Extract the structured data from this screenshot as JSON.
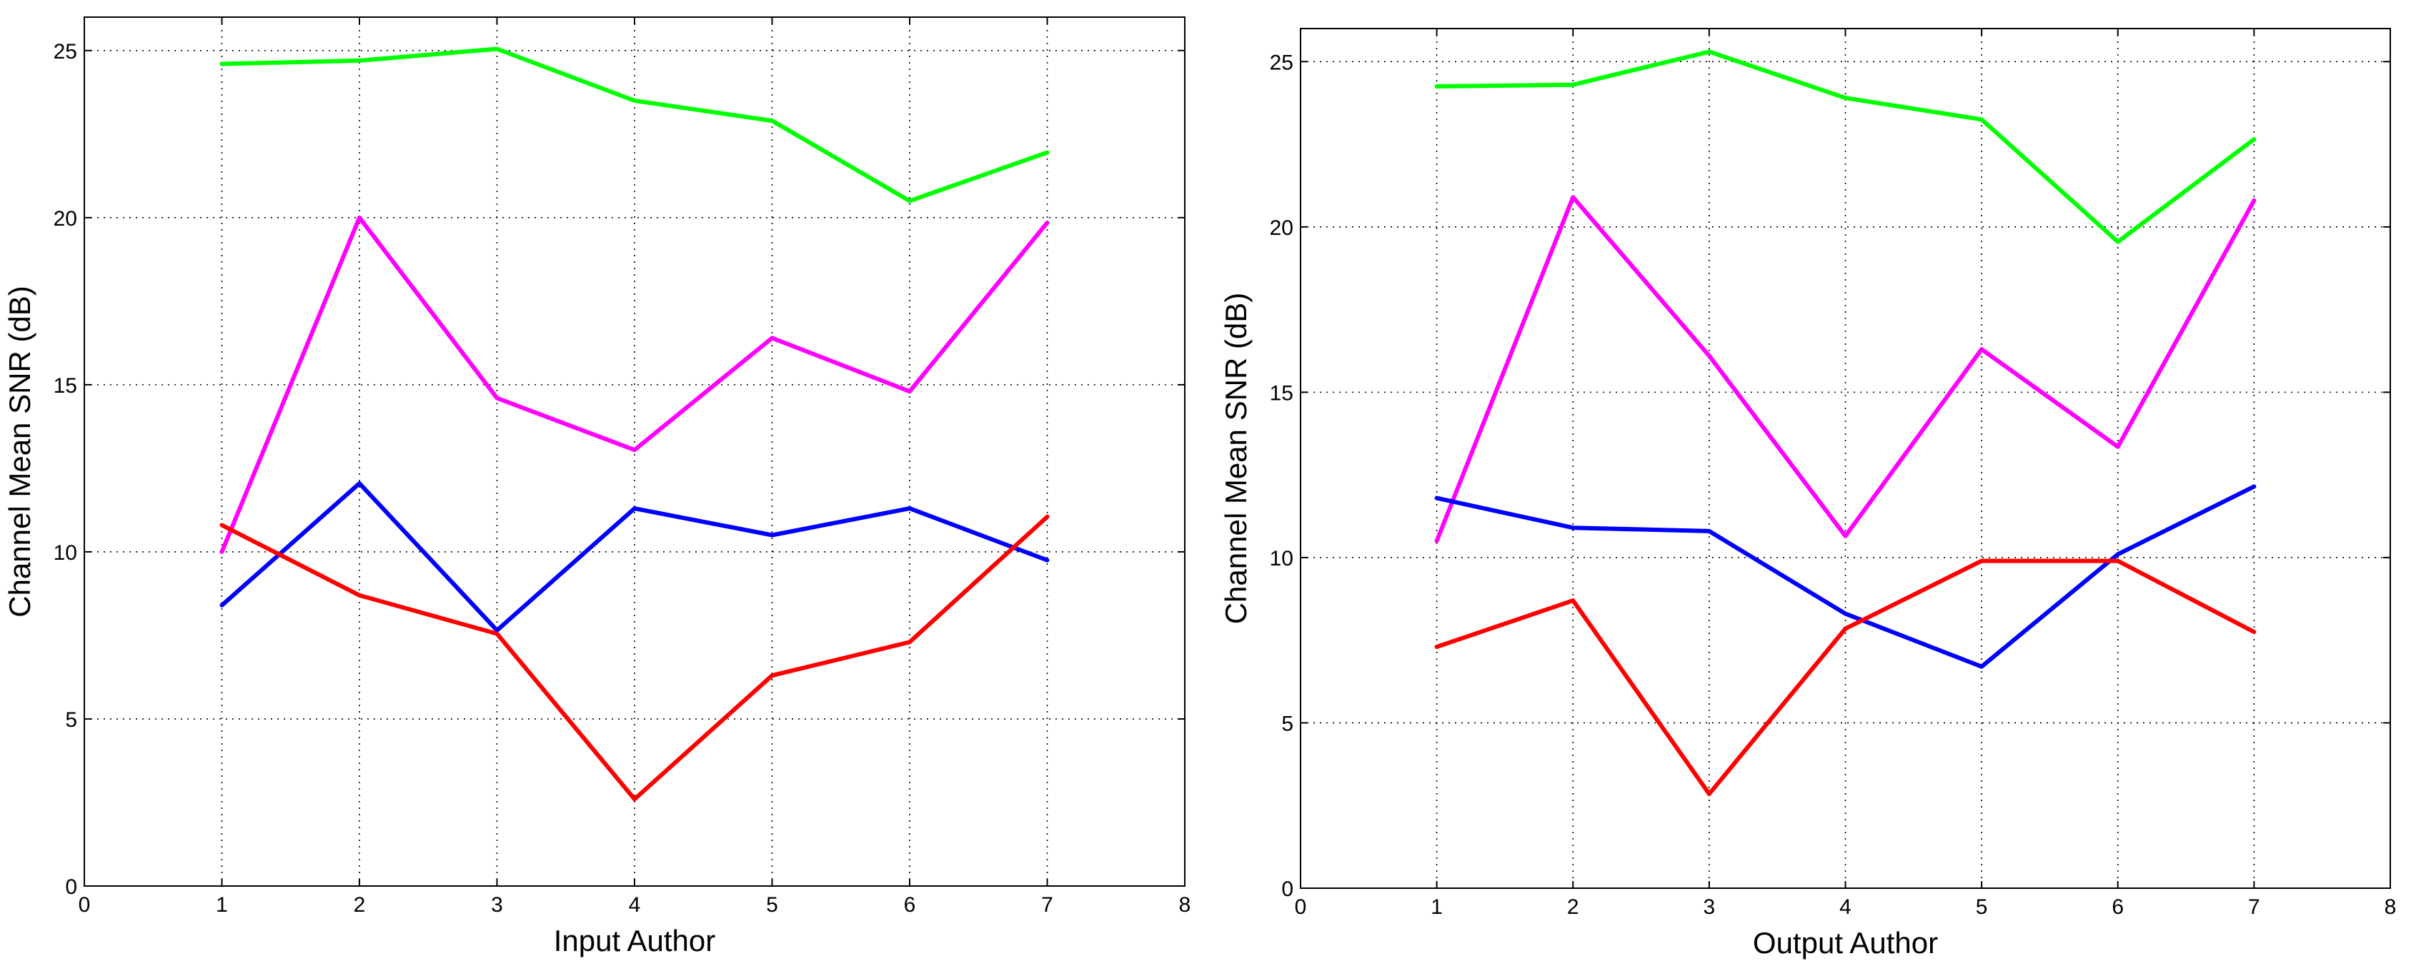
{
  "chart_data": [
    {
      "type": "line",
      "xlabel": "Input Author",
      "ylabel": "Channel Mean SNR (dB)",
      "xlim": [
        0,
        8
      ],
      "ylim": [
        0,
        26
      ],
      "xticks": [
        0,
        1,
        2,
        3,
        4,
        5,
        6,
        7,
        8
      ],
      "yticks": [
        0,
        5,
        10,
        15,
        20,
        25
      ],
      "xtick_labels": [
        "0",
        "1",
        "2",
        "3",
        "4",
        "5",
        "6",
        "7",
        "8"
      ],
      "ytick_labels": [
        "0",
        "5",
        "10",
        "15",
        "20",
        "25"
      ],
      "grid": true,
      "x": [
        1,
        2,
        3,
        4,
        5,
        6,
        7
      ],
      "series": [
        {
          "color": "#00ff00",
          "values": [
            24.6,
            24.7,
            25.05,
            23.5,
            22.9,
            20.5,
            21.95
          ]
        },
        {
          "color": "#ff00ff",
          "values": [
            10.0,
            20.0,
            14.6,
            13.05,
            16.4,
            14.8,
            19.85
          ]
        },
        {
          "color": "#0000ff",
          "values": [
            8.4,
            12.05,
            7.65,
            11.3,
            10.5,
            11.3,
            9.75
          ]
        },
        {
          "color": "#ff0000",
          "values": [
            10.8,
            8.7,
            7.55,
            2.6,
            6.3,
            7.3,
            11.05
          ]
        }
      ]
    },
    {
      "type": "line",
      "xlabel": "Output Author",
      "ylabel": "Channel Mean SNR (dB)",
      "xlim": [
        0,
        8
      ],
      "ylim": [
        0,
        26
      ],
      "xticks": [
        0,
        1,
        2,
        3,
        4,
        5,
        6,
        7,
        8
      ],
      "yticks": [
        0,
        5,
        10,
        15,
        20,
        25
      ],
      "xtick_labels": [
        "0",
        "1",
        "2",
        "3",
        "4",
        "5",
        "6",
        "7",
        "8"
      ],
      "ytick_labels": [
        "0",
        "5",
        "10",
        "15",
        "20",
        "25"
      ],
      "grid": true,
      "x": [
        1,
        2,
        3,
        4,
        5,
        6,
        7
      ],
      "series": [
        {
          "color": "#00ff00",
          "values": [
            24.25,
            24.3,
            25.3,
            23.9,
            23.25,
            19.55,
            22.65
          ]
        },
        {
          "color": "#ff00ff",
          "values": [
            10.5,
            20.9,
            16.1,
            10.65,
            16.3,
            13.35,
            20.8
          ]
        },
        {
          "color": "#0000ff",
          "values": [
            11.8,
            10.9,
            10.8,
            8.3,
            6.7,
            10.1,
            12.15
          ]
        },
        {
          "color": "#ff0000",
          "values": [
            7.3,
            8.7,
            2.85,
            7.85,
            9.9,
            9.9,
            7.75
          ]
        }
      ]
    }
  ]
}
